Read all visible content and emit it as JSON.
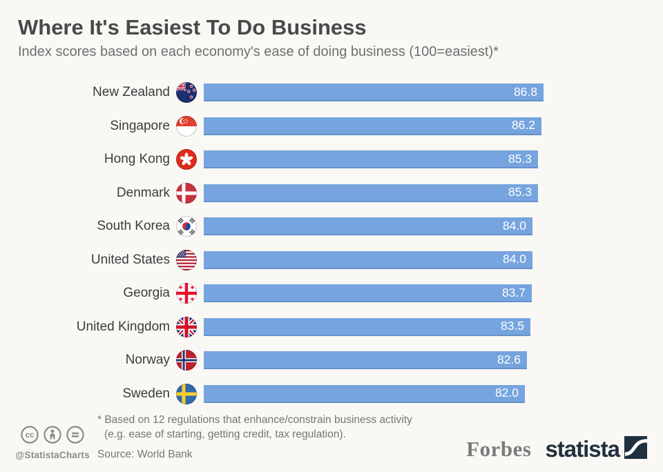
{
  "header": {
    "title": "Where It's Easiest To Do Business",
    "subtitle": "Index scores based on each economy's ease of doing business (100=easiest)*"
  },
  "chart_data": {
    "type": "bar",
    "orientation": "horizontal",
    "title": "Where It's Easiest To Do Business",
    "subtitle": "Index scores based on each economy's ease of doing business (100=easiest)*",
    "xlabel": "",
    "ylabel": "",
    "xlim": [
      0,
      100
    ],
    "grid": false,
    "legend": false,
    "bar_color": "#76a4de",
    "value_label_color": "#ffffff",
    "categories": [
      "New Zealand",
      "Singapore",
      "Hong Kong",
      "Denmark",
      "South Korea",
      "United States",
      "Georgia",
      "United Kingdom",
      "Norway",
      "Sweden"
    ],
    "values": [
      86.8,
      86.2,
      85.3,
      85.3,
      84.0,
      84.0,
      83.7,
      83.5,
      82.6,
      82.0
    ],
    "rows": [
      {
        "country": "New Zealand",
        "value": 86.8,
        "value_label": "86.8",
        "flag": "new-zealand-flag"
      },
      {
        "country": "Singapore",
        "value": 86.2,
        "value_label": "86.2",
        "flag": "singapore-flag"
      },
      {
        "country": "Hong Kong",
        "value": 85.3,
        "value_label": "85.3",
        "flag": "hong-kong-flag"
      },
      {
        "country": "Denmark",
        "value": 85.3,
        "value_label": "85.3",
        "flag": "denmark-flag"
      },
      {
        "country": "South Korea",
        "value": 84.0,
        "value_label": "84.0",
        "flag": "south-korea-flag"
      },
      {
        "country": "United States",
        "value": 84.0,
        "value_label": "84.0",
        "flag": "united-states-flag"
      },
      {
        "country": "Georgia",
        "value": 83.7,
        "value_label": "83.7",
        "flag": "georgia-flag"
      },
      {
        "country": "United Kingdom",
        "value": 83.5,
        "value_label": "83.5",
        "flag": "united-kingdom-flag"
      },
      {
        "country": "Norway",
        "value": 82.6,
        "value_label": "82.6",
        "flag": "norway-flag"
      },
      {
        "country": "Sweden",
        "value": 82.0,
        "value_label": "82.0",
        "flag": "sweden-flag"
      }
    ]
  },
  "footer": {
    "footnote_line1": "* Based on 12 regulations that enhance/constrain business activity",
    "footnote_line2": "(e.g. ease of starting, getting credit, tax regulation).",
    "source": "Source: World Bank",
    "handle": "@StatistaCharts",
    "license_icons": [
      "cc-icon",
      "attribution-icon",
      "no-derivatives-icon"
    ],
    "forbes_logo": "Forbes",
    "statista_logo": "statista",
    "statista_color": "#212f3d",
    "forbes_color": "#7b7b7b"
  }
}
